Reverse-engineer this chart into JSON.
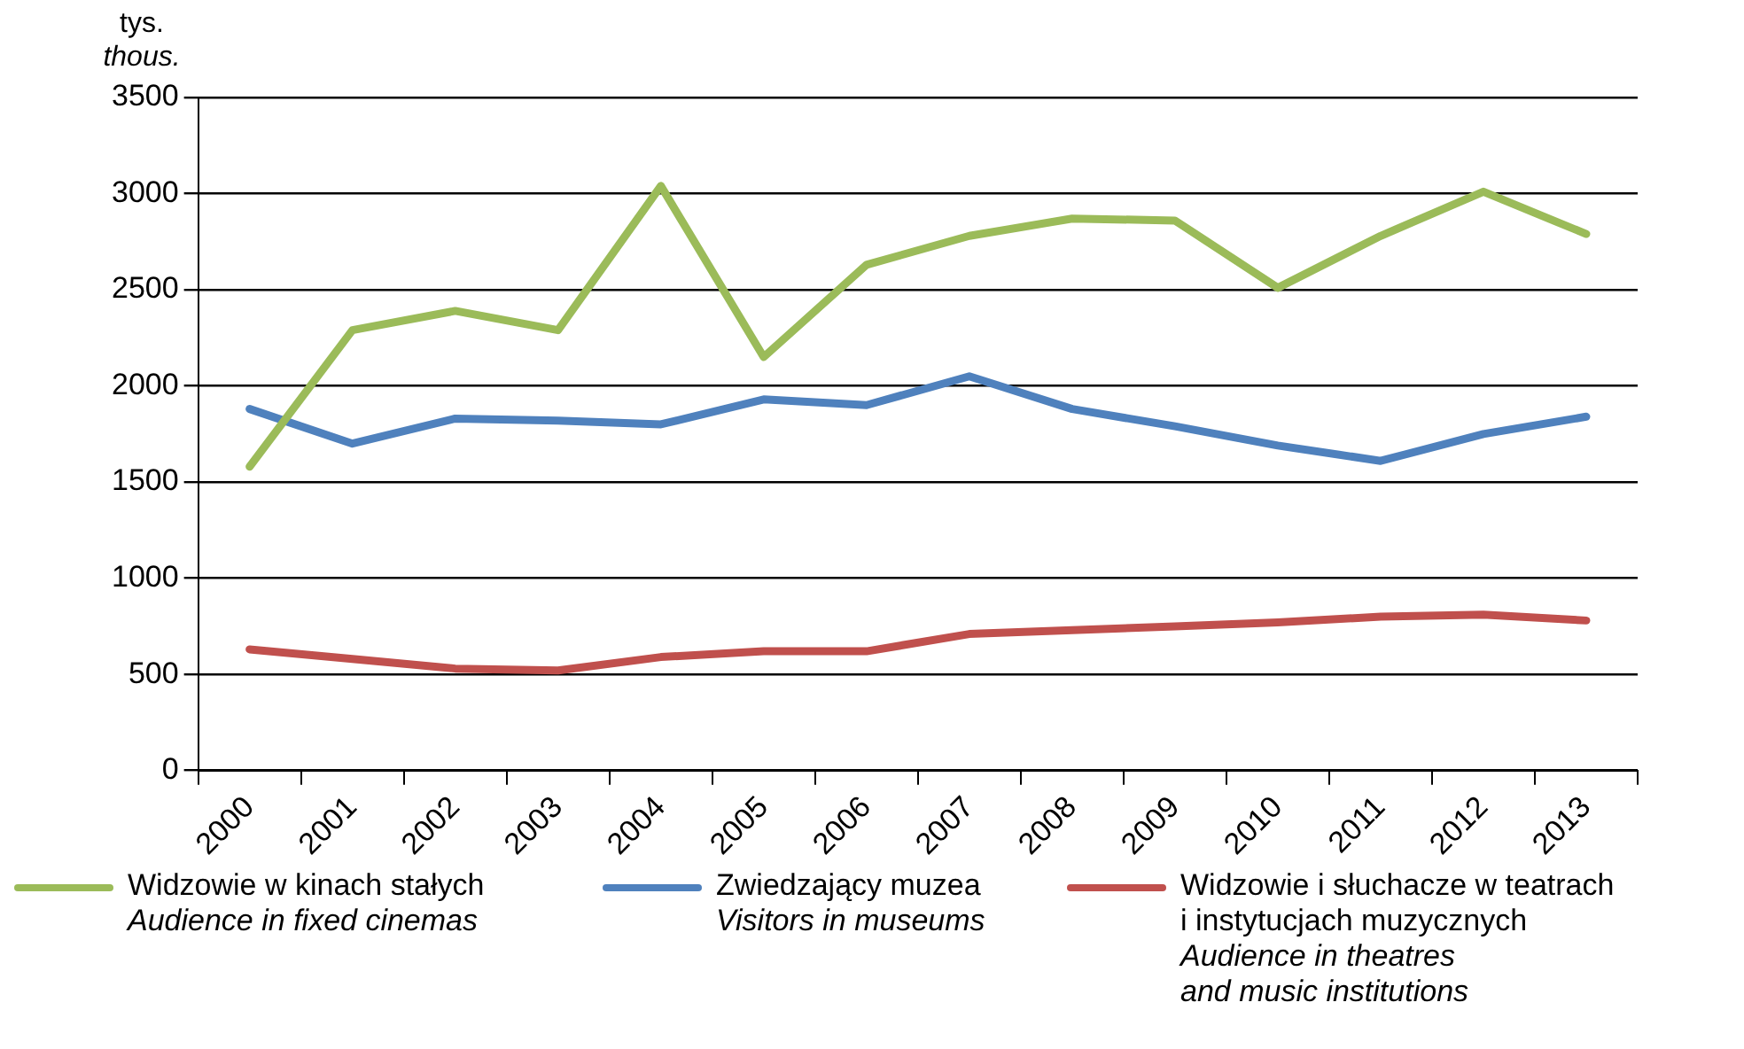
{
  "chart_data": {
    "type": "line",
    "ylabel": "tys.\nthous.",
    "categories": [
      "2000",
      "2001",
      "2002",
      "2003",
      "2004",
      "2005",
      "2006",
      "2007",
      "2008",
      "2009",
      "2010",
      "2011",
      "2012",
      "2013"
    ],
    "series": [
      {
        "name": "Widzowie w kinach stałych\n\nAudience in fixed cinemas",
        "color": "#9bbb59",
        "values": [
          1580,
          2290,
          2390,
          2290,
          3040,
          2150,
          2630,
          2780,
          2870,
          2860,
          2510,
          2780,
          3010,
          2790
        ]
      },
      {
        "name": "Zwiedzający muzea\n\nVisitors in museums",
        "color": "#4f81bd",
        "values": [
          1880,
          1700,
          1830,
          1820,
          1800,
          1930,
          1900,
          2050,
          1880,
          1790,
          1690,
          1610,
          1750,
          1840
        ]
      },
      {
        "name": "Widzowie i słuchacze w teatrach\ni instytucjach muzycznych\n\nAudience in theatres\nand music institutions",
        "color": "#c0504d",
        "values": [
          630,
          580,
          530,
          520,
          590,
          620,
          620,
          710,
          730,
          750,
          770,
          800,
          810,
          780
        ]
      }
    ],
    "ylim": [
      0,
      3500
    ],
    "yticks": [
      0,
      500,
      1000,
      1500,
      2000,
      2500,
      3000,
      3500
    ],
    "grid": "y",
    "legend": "bottom",
    "marker": "none",
    "line_style": "solid"
  }
}
